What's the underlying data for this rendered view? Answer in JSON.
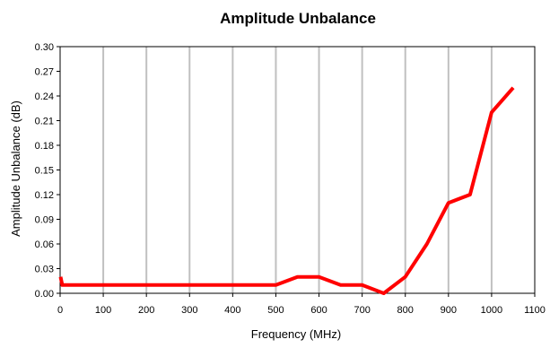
{
  "chart_data": {
    "type": "line",
    "title": "Amplitude Unbalance",
    "xlabel": "Frequency (MHz)",
    "ylabel": "Amplitude Unbalance (dB)",
    "xlim": [
      0,
      1100
    ],
    "ylim": [
      0,
      0.3
    ],
    "x_ticks": [
      "0",
      "100",
      "200",
      "300",
      "400",
      "500",
      "600",
      "700",
      "800",
      "900",
      "1000",
      "1100"
    ],
    "y_ticks": [
      "0.00",
      "0.03",
      "0.06",
      "0.09",
      "0.12",
      "0.15",
      "0.18",
      "0.21",
      "0.24",
      "0.27",
      "0.30"
    ],
    "grid": {
      "vertical": true,
      "horizontal": false
    },
    "legend": "none",
    "series": [
      {
        "color": "#ff0000",
        "points": [
          [
            1,
            0.02
          ],
          [
            5,
            0.01
          ],
          [
            10,
            0.01
          ],
          [
            50,
            0.01
          ],
          [
            100,
            0.01
          ],
          [
            200,
            0.01
          ],
          [
            300,
            0.01
          ],
          [
            400,
            0.01
          ],
          [
            500,
            0.01
          ],
          [
            550,
            0.02
          ],
          [
            600,
            0.02
          ],
          [
            650,
            0.01
          ],
          [
            700,
            0.01
          ],
          [
            750,
            0.0
          ],
          [
            800,
            0.02
          ],
          [
            850,
            0.06
          ],
          [
            900,
            0.11
          ],
          [
            950,
            0.12
          ],
          [
            1000,
            0.22
          ],
          [
            1050,
            0.25
          ]
        ]
      }
    ]
  }
}
